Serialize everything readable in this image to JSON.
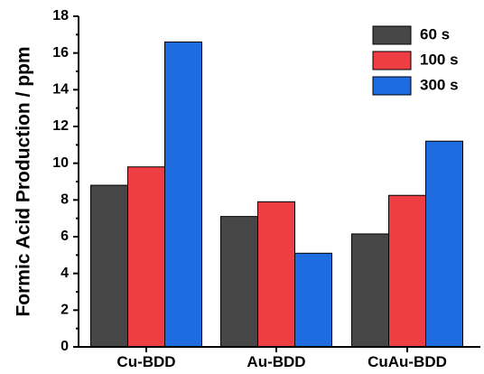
{
  "chart_data": {
    "type": "bar",
    "title": "",
    "xlabel": "",
    "ylabel": "Formic Acid Production / ppm",
    "ylim": [
      0,
      18
    ],
    "yticks": [
      0,
      2,
      4,
      6,
      8,
      10,
      12,
      14,
      16,
      18
    ],
    "categories": [
      "Cu-BDD",
      "Au-BDD",
      "CuAu-BDD"
    ],
    "series": [
      {
        "name": "60 s",
        "color": "#474747",
        "values": [
          8.8,
          7.1,
          6.15
        ]
      },
      {
        "name": "100 s",
        "color": "#ee3e44",
        "values": [
          9.8,
          7.9,
          8.25
        ]
      },
      {
        "name": "300 s",
        "color": "#1f6be0",
        "values": [
          16.6,
          5.1,
          11.2
        ]
      }
    ],
    "legend_position": "top-right",
    "grid": false
  }
}
